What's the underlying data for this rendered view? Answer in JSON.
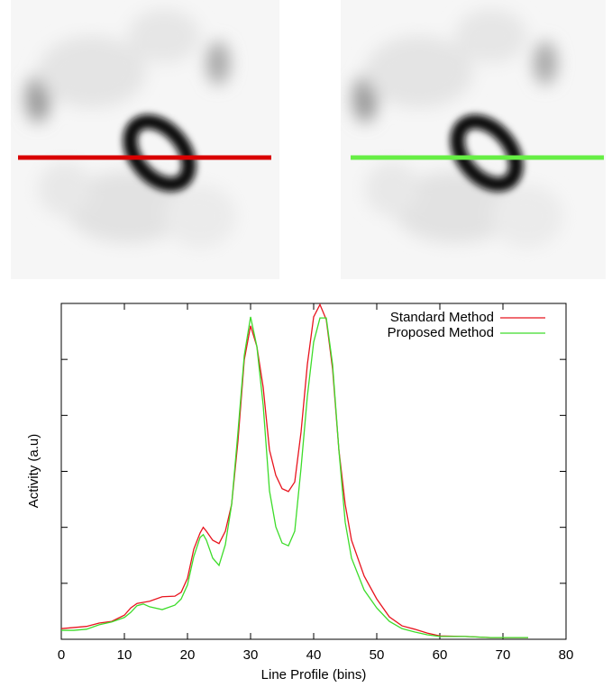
{
  "chart_data": {
    "type": "line",
    "x_label": "Line Profile (bins)",
    "y_label": "Activity (a.u)",
    "xlim": [
      0,
      80
    ],
    "xticks": [
      0,
      10,
      20,
      30,
      40,
      50,
      60,
      70,
      80
    ],
    "ylim": [
      0,
      6
    ],
    "yticks": [
      0,
      1,
      2,
      3,
      4,
      5,
      6
    ],
    "legend": "top-right",
    "x": [
      0,
      2,
      4,
      6,
      8,
      10,
      11,
      12,
      13,
      14,
      16,
      18,
      19,
      20,
      21,
      22,
      22.5,
      23,
      24,
      25,
      26,
      27,
      28,
      29,
      30,
      31,
      32,
      33,
      34,
      35,
      36,
      37,
      38,
      39,
      40,
      41,
      42,
      43,
      44,
      45,
      46,
      48,
      50,
      52,
      54,
      56,
      58,
      60,
      64,
      68,
      72,
      74
    ],
    "series": [
      {
        "name": "Standard Method",
        "color": "#e8141e",
        "values": [
          0.19,
          0.21,
          0.23,
          0.29,
          0.32,
          0.43,
          0.56,
          0.64,
          0.66,
          0.68,
          0.76,
          0.77,
          0.84,
          1.09,
          1.61,
          1.9,
          2.0,
          1.93,
          1.77,
          1.71,
          1.93,
          2.41,
          3.54,
          4.99,
          5.6,
          5.23,
          4.5,
          3.38,
          2.93,
          2.69,
          2.64,
          2.81,
          3.7,
          4.91,
          5.76,
          5.98,
          5.71,
          4.83,
          3.38,
          2.41,
          1.77,
          1.13,
          0.72,
          0.4,
          0.24,
          0.18,
          0.11,
          0.06,
          0.05,
          0.03,
          0.03,
          0.03
        ]
      },
      {
        "name": "Proposed Method",
        "color": "#3ddc2a",
        "values": [
          0.16,
          0.16,
          0.18,
          0.26,
          0.31,
          0.39,
          0.48,
          0.6,
          0.63,
          0.58,
          0.53,
          0.61,
          0.72,
          0.97,
          1.48,
          1.82,
          1.87,
          1.77,
          1.45,
          1.32,
          1.69,
          2.41,
          3.7,
          5.07,
          5.76,
          5.23,
          4.18,
          2.65,
          2.01,
          1.72,
          1.67,
          1.93,
          3.06,
          4.34,
          5.31,
          5.74,
          5.74,
          4.91,
          3.38,
          2.09,
          1.45,
          0.88,
          0.56,
          0.32,
          0.19,
          0.13,
          0.08,
          0.05,
          0.05,
          0.03,
          0.03,
          0.03
        ]
      }
    ]
  }
}
